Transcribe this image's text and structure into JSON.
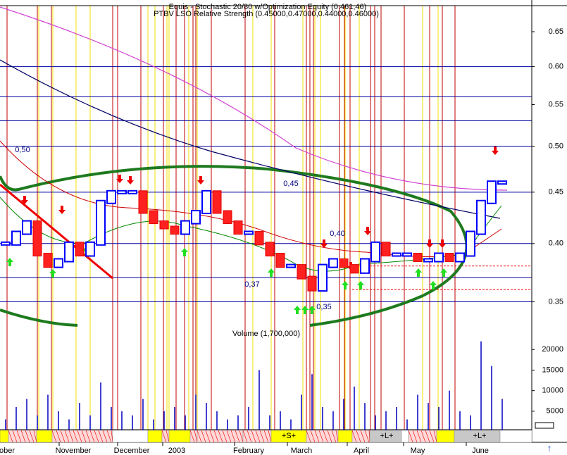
{
  "chart_data": {
    "type": "step",
    "title": "Equis - Stochastic 20/80 w/Optimization Equity (0.461,46)",
    "subtitle": "PTBV LSO Relative Strength (0.45000,0.47000,0.44000,0.46000)",
    "log_scale": true,
    "ylim": [
      0.33,
      0.69
    ],
    "yticks": [
      0.35,
      {
        "value": 0.4,
        "label": "0.40"
      },
      0.45,
      {
        "value": 0.5,
        "label": "0.50"
      },
      0.55,
      {
        "value": 0.6,
        "label": "0.60"
      },
      0.65
    ],
    "levels": [
      0.6,
      0.56,
      0.53,
      0.5,
      0.45,
      0.4,
      0.37,
      0.35
    ],
    "stops": [
      0.38,
      0.36
    ],
    "values": [
      0.4,
      0.41,
      0.42,
      0.39,
      0.38,
      0.385,
      0.4,
      0.39,
      0.4,
      0.44,
      0.45,
      0.45,
      0.45,
      0.43,
      0.42,
      0.415,
      0.41,
      0.42,
      0.43,
      0.45,
      0.43,
      0.42,
      0.41,
      0.41,
      0.4,
      0.39,
      0.38,
      0.38,
      0.37,
      0.36,
      0.38,
      0.385,
      0.38,
      0.375,
      0.385,
      0.4,
      0.39,
      0.39,
      0.39,
      0.385,
      0.385,
      0.39,
      0.385,
      0.39,
      0.41,
      0.44,
      0.46,
      0.46
    ],
    "months": [
      "ober",
      "November",
      "December",
      "2003",
      "February",
      "March",
      "April",
      "May",
      "June"
    ],
    "annotations": [
      "0,50",
      "0,45",
      "0,40",
      "0,37",
      "0,35"
    ],
    "volume": {
      "label": "Volume (1,700,000)",
      "ylim": [
        0,
        24500
      ],
      "yticks": [
        5000,
        10000,
        15000,
        20000
      ],
      "values": [
        3000,
        6000,
        8000,
        4000,
        9000,
        5000,
        3000,
        7000,
        4000,
        12000,
        6000,
        5000,
        4000,
        8000,
        3000,
        5000,
        6000,
        4000,
        9000,
        7000,
        5000,
        3000,
        4000,
        6000,
        15000,
        4000,
        5000,
        3000,
        9000,
        14000,
        6000,
        5000,
        8000,
        11000,
        7000,
        4000,
        5000,
        6000,
        3000,
        9000,
        7000,
        6000,
        10000,
        5000,
        4000,
        22000,
        16000,
        8000
      ]
    },
    "signals": [
      "+S+",
      "+L+",
      "+L+"
    ]
  }
}
